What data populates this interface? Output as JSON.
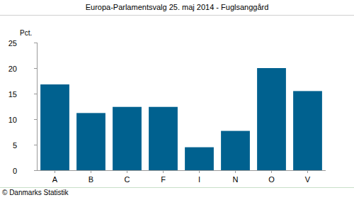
{
  "chart_data": {
    "type": "bar",
    "title": "Europa-Parlamentsvalg 25. maj 2014 - Fuglsanggård",
    "y_label": "Pct.",
    "source": "© Danmarks Statistik",
    "categories": [
      "A",
      "B",
      "C",
      "F",
      "I",
      "N",
      "O",
      "V"
    ],
    "values": [
      16.8,
      11.2,
      12.4,
      12.4,
      4.5,
      7.7,
      20.0,
      15.5
    ],
    "color": "#00618f",
    "ylim": [
      0,
      25
    ],
    "yticks": [
      0,
      5,
      10,
      15,
      20,
      25
    ],
    "grid": false
  }
}
